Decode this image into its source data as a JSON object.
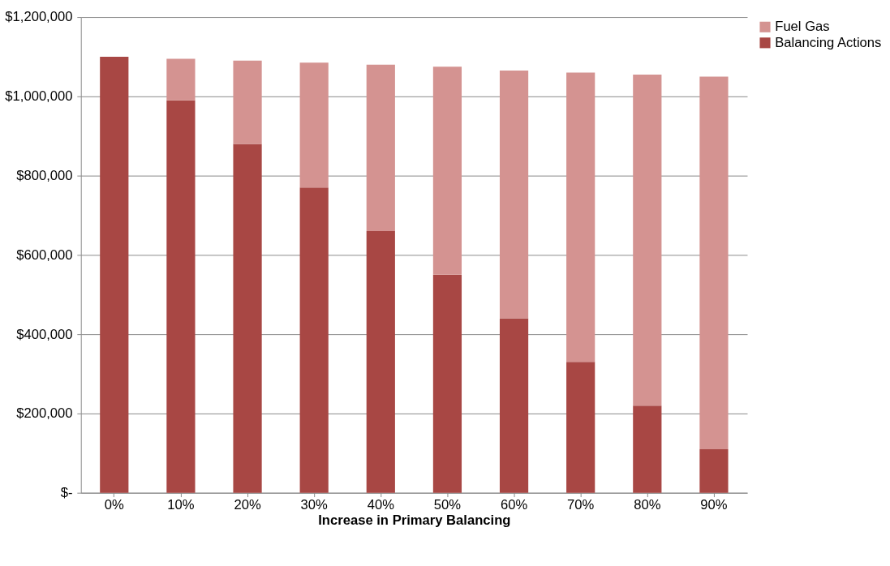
{
  "chart_data": {
    "type": "bar",
    "stacked": true,
    "xlabel": "Increase in Primary Balancing",
    "categories": [
      "0%",
      "10%",
      "20%",
      "30%",
      "40%",
      "50%",
      "60%",
      "70%",
      "80%",
      "90%"
    ],
    "series": [
      {
        "name": "Balancing Actions",
        "color": "#a84744",
        "values": [
          1100000,
          990000,
          880000,
          770000,
          660000,
          550000,
          440000,
          330000,
          220000,
          110000
        ]
      },
      {
        "name": "Fuel Gas",
        "color": "#d49391",
        "values": [
          0,
          105000,
          210000,
          315000,
          420000,
          525000,
          625000,
          730000,
          835000,
          940000
        ]
      }
    ],
    "ylim": [
      0,
      1200000
    ],
    "yticks": [
      {
        "value": 0,
        "label": "$-"
      },
      {
        "value": 200000,
        "label": "$200,000"
      },
      {
        "value": 400000,
        "label": "$400,000"
      },
      {
        "value": 600000,
        "label": "$600,000"
      },
      {
        "value": 800000,
        "label": "$800,000"
      },
      {
        "value": 1000000,
        "label": "$1,000,000"
      },
      {
        "value": 1200000,
        "label": "$1,200,000"
      }
    ],
    "grid": "y",
    "legend": "top right"
  }
}
